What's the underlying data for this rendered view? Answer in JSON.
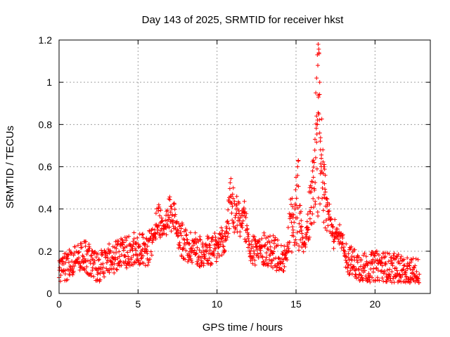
{
  "chart_data": {
    "type": "scatter",
    "title": "Day 143 of 2025, SRMTID for receiver hkst",
    "xlabel": "GPS time / hours",
    "ylabel": "SRMTID / TECUs",
    "xlim": [
      0,
      23.5
    ],
    "ylim": [
      0,
      1.2
    ],
    "xticks": [
      0,
      5,
      10,
      15,
      20
    ],
    "xtick_labels": [
      "0",
      "5",
      "10",
      "15",
      "20"
    ],
    "yticks": [
      0,
      0.2,
      0.4,
      0.6,
      0.8,
      1.0,
      1.2
    ],
    "ytick_labels": [
      "0",
      "0.2",
      "0.4",
      "0.6",
      "0.8",
      "1",
      "1.2"
    ],
    "grid": true,
    "marker": "+",
    "color": "#ff0000",
    "series": [
      {
        "name": "SRMTID",
        "x_start": 0.0,
        "x_end": 22.8,
        "baseline": [
          [
            0.0,
            0.13
          ],
          [
            0.5,
            0.12
          ],
          [
            1.0,
            0.17
          ],
          [
            1.5,
            0.19
          ],
          [
            2.0,
            0.15
          ],
          [
            2.5,
            0.12
          ],
          [
            3.0,
            0.16
          ],
          [
            3.5,
            0.17
          ],
          [
            4.0,
            0.19
          ],
          [
            4.5,
            0.2
          ],
          [
            5.0,
            0.22
          ],
          [
            5.5,
            0.2
          ],
          [
            6.0,
            0.25
          ],
          [
            6.5,
            0.28
          ],
          [
            7.0,
            0.3
          ],
          [
            7.5,
            0.28
          ],
          [
            8.0,
            0.23
          ],
          [
            8.5,
            0.22
          ],
          [
            9.0,
            0.2
          ],
          [
            9.5,
            0.2
          ],
          [
            10.0,
            0.21
          ],
          [
            10.5,
            0.25
          ],
          [
            11.0,
            0.31
          ],
          [
            11.5,
            0.27
          ],
          [
            12.0,
            0.22
          ],
          [
            12.5,
            0.2
          ],
          [
            13.0,
            0.21
          ],
          [
            13.5,
            0.2
          ],
          [
            14.0,
            0.17
          ],
          [
            14.5,
            0.16
          ],
          [
            15.0,
            0.22
          ],
          [
            15.5,
            0.2
          ],
          [
            16.0,
            0.3
          ],
          [
            16.5,
            0.35
          ],
          [
            17.0,
            0.3
          ],
          [
            17.5,
            0.27
          ],
          [
            18.0,
            0.18
          ],
          [
            18.5,
            0.15
          ],
          [
            19.0,
            0.13
          ],
          [
            19.5,
            0.12
          ],
          [
            20.0,
            0.13
          ],
          [
            20.5,
            0.13
          ],
          [
            21.0,
            0.12
          ],
          [
            21.5,
            0.12
          ],
          [
            22.0,
            0.1
          ],
          [
            22.5,
            0.1
          ],
          [
            22.8,
            0.09
          ]
        ],
        "peaks": [
          {
            "x": 6.3,
            "y": 0.44
          },
          {
            "x": 7.0,
            "y": 0.47
          },
          {
            "x": 7.2,
            "y": 0.45
          },
          {
            "x": 10.9,
            "y": 0.56
          },
          {
            "x": 11.3,
            "y": 0.45
          },
          {
            "x": 11.7,
            "y": 0.43
          },
          {
            "x": 14.7,
            "y": 0.45
          },
          {
            "x": 15.1,
            "y": 0.63
          },
          {
            "x": 15.9,
            "y": 0.52
          },
          {
            "x": 16.1,
            "y": 0.63
          },
          {
            "x": 16.4,
            "y": 1.18
          },
          {
            "x": 16.55,
            "y": 1.05
          },
          {
            "x": 16.7,
            "y": 0.68
          },
          {
            "x": 17.0,
            "y": 0.44
          },
          {
            "x": 17.8,
            "y": 0.34
          }
        ],
        "spike_points": [
          [
            16.25,
            0.95
          ],
          [
            16.3,
            1.02
          ],
          [
            16.35,
            1.13
          ],
          [
            16.4,
            1.18
          ],
          [
            16.45,
            1.14
          ],
          [
            16.38,
            1.08
          ],
          [
            16.42,
            0.93
          ],
          [
            16.3,
            0.84
          ],
          [
            16.35,
            0.8
          ],
          [
            16.5,
            0.76
          ],
          [
            16.55,
            0.68
          ],
          [
            16.6,
            0.64
          ],
          [
            16.7,
            0.68
          ],
          [
            16.75,
            0.6
          ],
          [
            16.2,
            0.73
          ],
          [
            16.15,
            0.62
          ],
          [
            16.05,
            0.58
          ],
          [
            16.1,
            0.55
          ],
          [
            16.0,
            0.5
          ],
          [
            16.8,
            0.52
          ],
          [
            16.9,
            0.45
          ],
          [
            17.0,
            0.43
          ],
          [
            16.85,
            0.56
          ],
          [
            15.15,
            0.63
          ],
          [
            15.1,
            0.6
          ],
          [
            15.0,
            0.55
          ],
          [
            14.75,
            0.45
          ],
          [
            14.8,
            0.41
          ],
          [
            15.25,
            0.38
          ],
          [
            15.9,
            0.48
          ],
          [
            16.5,
            1.0
          ],
          [
            16.45,
            0.85
          ],
          [
            16.6,
            0.6
          ]
        ]
      }
    ]
  }
}
